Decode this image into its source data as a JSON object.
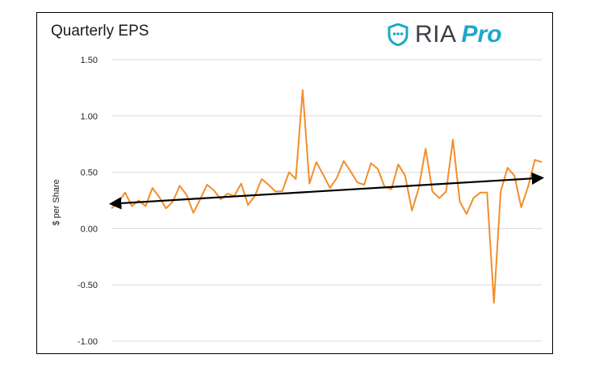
{
  "chart_data": {
    "type": "line",
    "title": "Quarterly EPS",
    "ylabel": "$ per Share",
    "xlabel": "",
    "ylim": [
      -1.0,
      1.5
    ],
    "yticks": [
      "1.50",
      "1.00",
      "0.50",
      "0.00",
      "-0.50",
      "-1.00"
    ],
    "ytick_values": [
      1.5,
      1.0,
      0.5,
      0.0,
      -0.5,
      -1.0
    ],
    "grid": true,
    "legend": "none",
    "series": [
      {
        "color": "#f28e2b",
        "values": [
          0.18,
          0.23,
          0.32,
          0.2,
          0.25,
          0.2,
          0.36,
          0.28,
          0.18,
          0.24,
          0.38,
          0.3,
          0.14,
          0.26,
          0.39,
          0.34,
          0.26,
          0.31,
          0.29,
          0.4,
          0.21,
          0.29,
          0.44,
          0.39,
          0.33,
          0.33,
          0.5,
          0.44,
          1.23,
          0.4,
          0.59,
          0.48,
          0.36,
          0.45,
          0.6,
          0.51,
          0.41,
          0.39,
          0.58,
          0.53,
          0.37,
          0.35,
          0.57,
          0.47,
          0.16,
          0.36,
          0.71,
          0.33,
          0.27,
          0.33,
          0.79,
          0.24,
          0.13,
          0.27,
          0.32,
          0.32,
          -0.66,
          0.33,
          0.54,
          0.47,
          0.19,
          0.37,
          0.61,
          0.59
        ]
      }
    ],
    "trendline": {
      "color": "#000000",
      "start": 0.22,
      "end": 0.45,
      "arrows": "both"
    }
  },
  "logo": {
    "ria": "RIA",
    "pro": "Pro",
    "icon": "shield-chat-icon",
    "color_ria": "#3a3f45",
    "color_pro": "#1ba8c9"
  }
}
